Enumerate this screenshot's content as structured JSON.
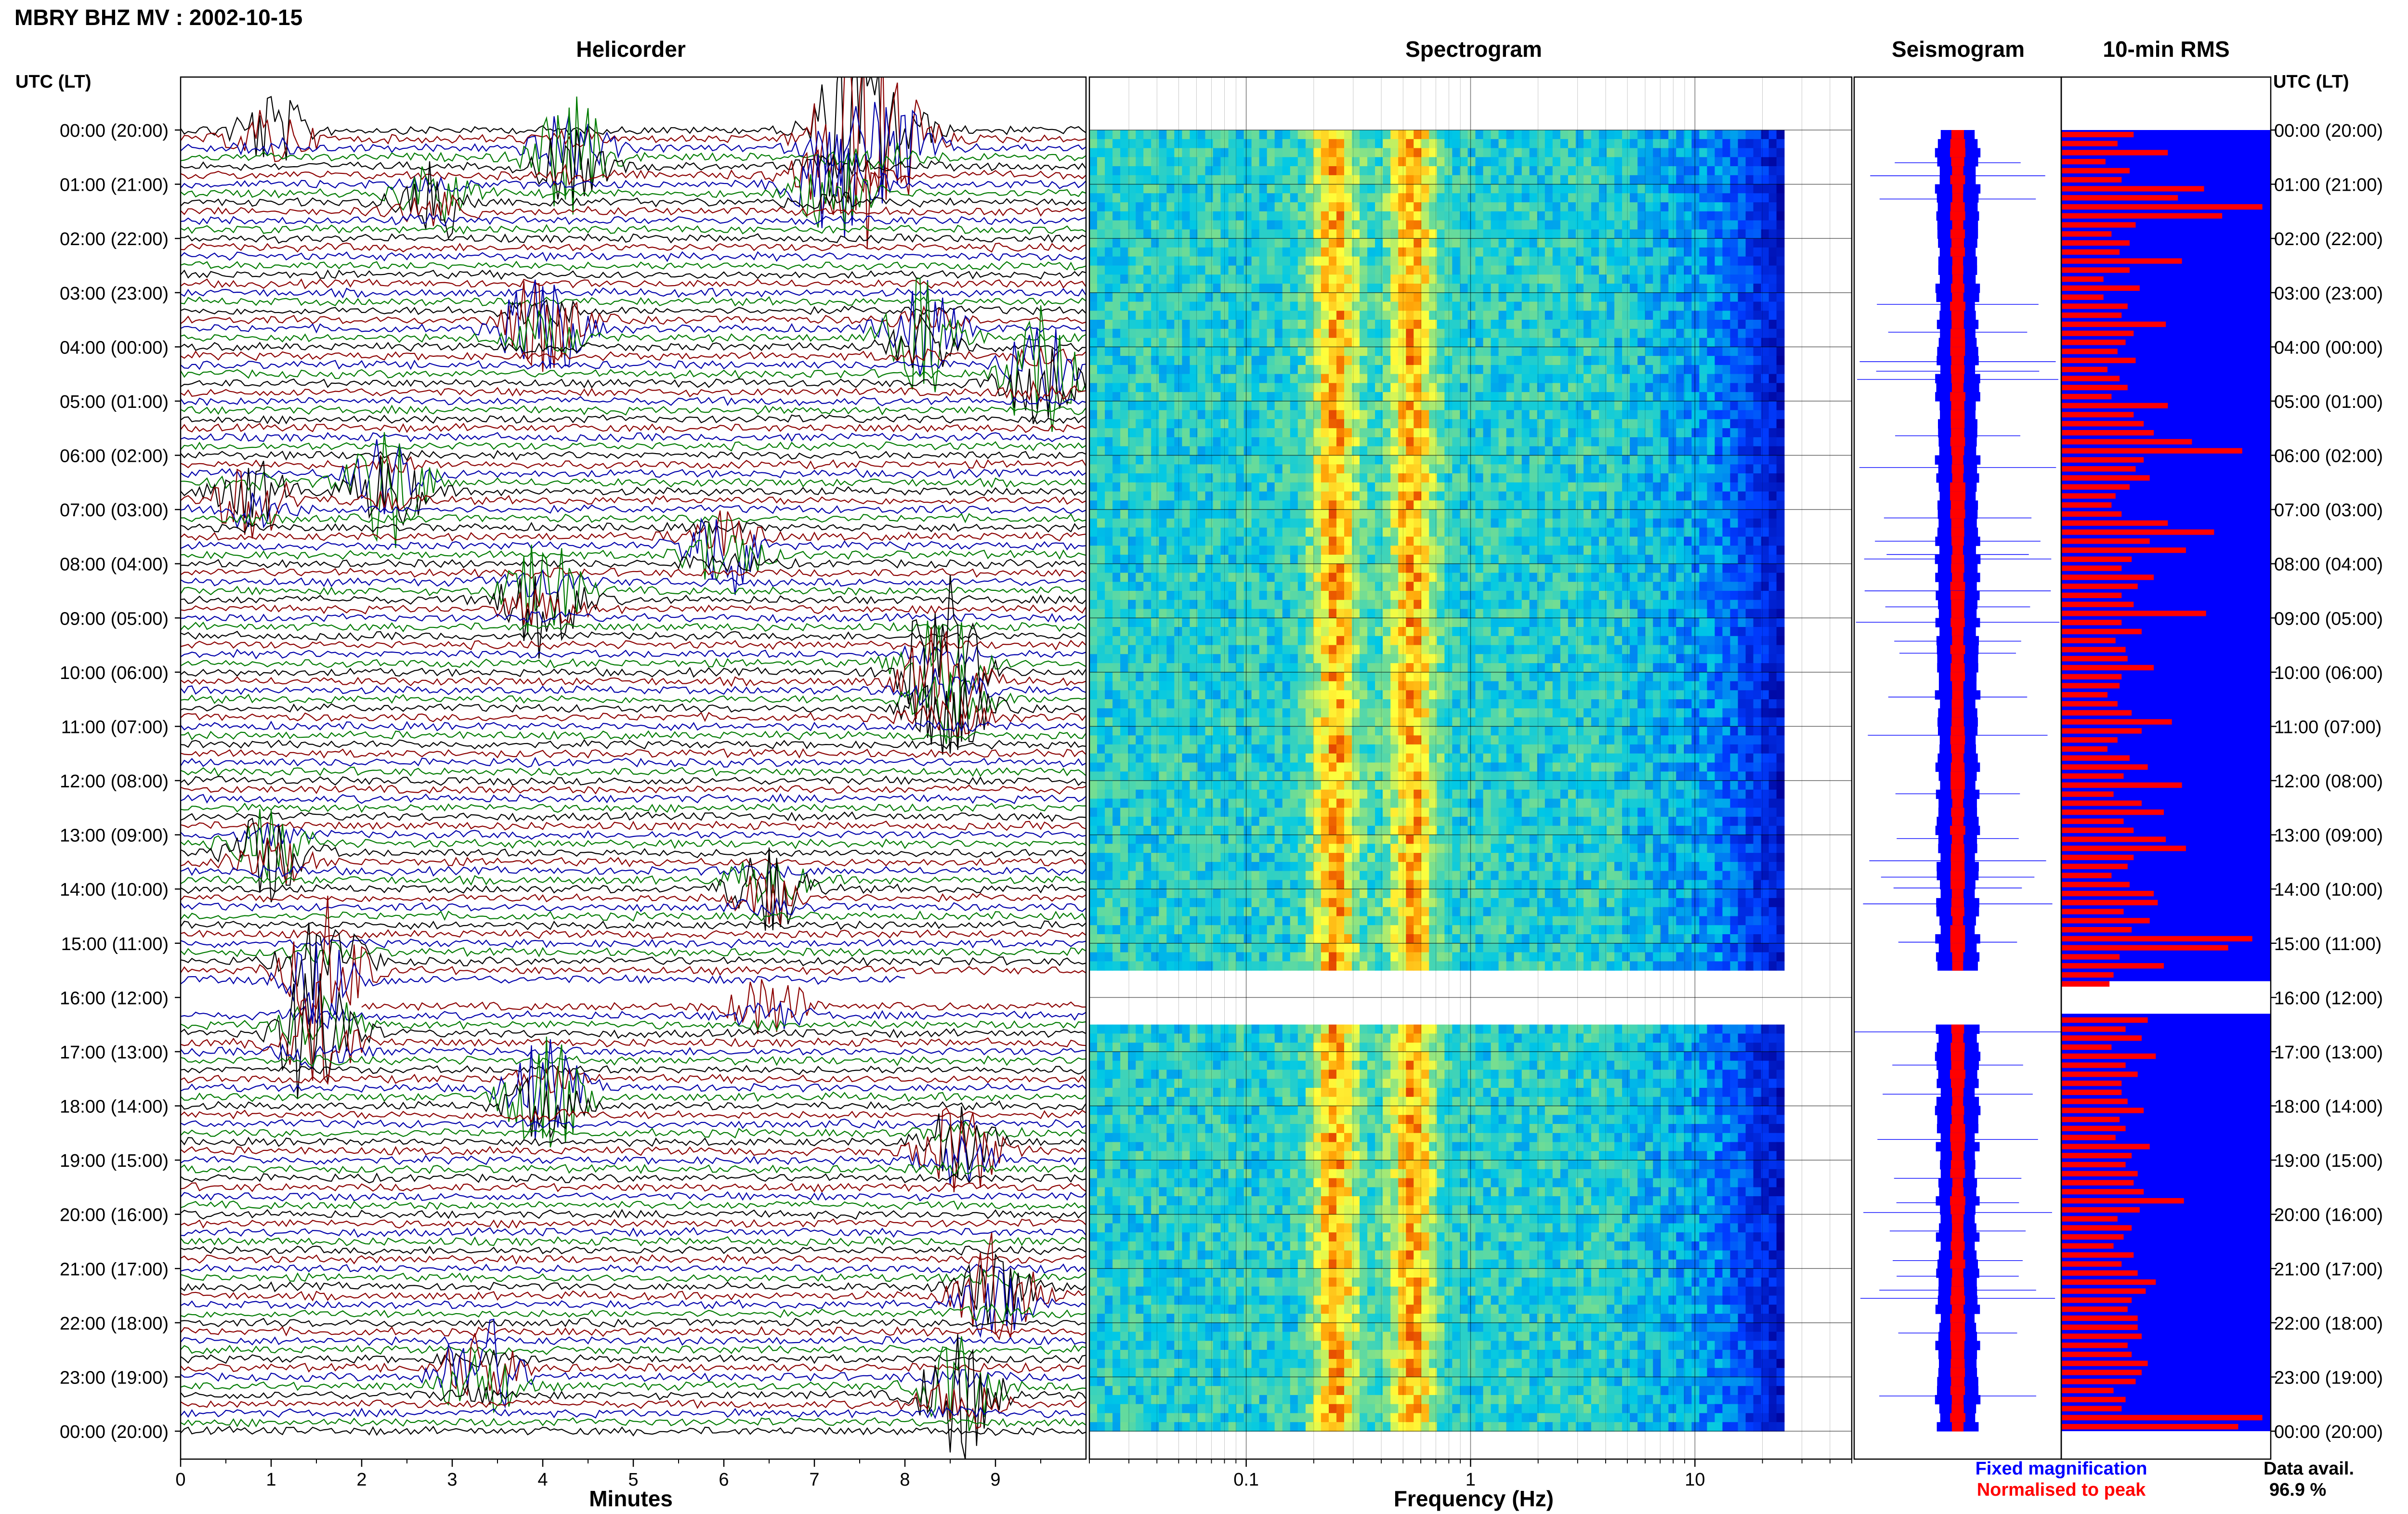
{
  "header": {
    "title": "MBRY BHZ MV : 2002-10-15",
    "left_axis_title": "UTC (LT)",
    "right_axis_title": "UTC (LT)"
  },
  "panels": {
    "helicorder": "Helicorder",
    "spectrogram": "Spectrogram",
    "seismogram": "Seismogram",
    "rms": "10-min RMS"
  },
  "legend": {
    "fixed": "Fixed magnification",
    "normalised": "Normalised to peak",
    "data_avail_label": "Data avail.",
    "data_avail_value": "96.9 %"
  },
  "colors": {
    "trace_cycle": [
      "#000000",
      "#8b0000",
      "#0000aa",
      "#007a00"
    ],
    "rms_background": "#0000ff",
    "rms_bar": "#ff0000",
    "seis_fixed": "#0000ff",
    "seis_normalised": "#ff0000",
    "legend_fixed": "#0000ff",
    "legend_normalised": "#ff0000"
  },
  "chart_data": [
    {
      "type": "line",
      "panel": "Helicorder",
      "xlabel": "Minutes",
      "x_ticks": [
        "0",
        "1",
        "2",
        "3",
        "4",
        "5",
        "6",
        "7",
        "8",
        "9"
      ],
      "xlim": [
        0,
        10
      ],
      "y_tick_labels": [
        "00:00 (20:00)",
        "01:00 (21:00)",
        "02:00 (22:00)",
        "03:00 (23:00)",
        "04:00 (00:00)",
        "05:00 (01:00)",
        "06:00 (02:00)",
        "07:00 (03:00)",
        "08:00 (04:00)",
        "09:00 (05:00)",
        "10:00 (06:00)",
        "11:00 (07:00)",
        "12:00 (08:00)",
        "13:00 (09:00)",
        "14:00 (10:00)",
        "15:00 (11:00)",
        "16:00 (12:00)",
        "17:00 (13:00)",
        "18:00 (14:00)",
        "19:00 (15:00)",
        "20:00 (16:00)",
        "21:00 (17:00)",
        "22:00 (18:00)",
        "23:00 (19:00)",
        "00:00 (20:00)"
      ],
      "lines_per_hour": 6,
      "gap": {
        "start_hour": 15.5,
        "end_hour": 16.2
      },
      "events": [
        {
          "hour": 0.05,
          "minute": 1.0,
          "amplitude": 0.9
        },
        {
          "hour": 0.1,
          "minute": 7.4,
          "amplitude": 2.6
        },
        {
          "hour": 0.2,
          "minute": 7.9,
          "amplitude": 1.5
        },
        {
          "hour": 0.5,
          "minute": 4.3,
          "amplitude": 1.4
        },
        {
          "hour": 1.0,
          "minute": 7.2,
          "amplitude": 1.6
        },
        {
          "hour": 1.3,
          "minute": 2.8,
          "amplitude": 1.0
        },
        {
          "hour": 3.6,
          "minute": 4.0,
          "amplitude": 1.6
        },
        {
          "hour": 3.8,
          "minute": 8.2,
          "amplitude": 1.5
        },
        {
          "hour": 4.5,
          "minute": 9.5,
          "amplitude": 1.6
        },
        {
          "hour": 6.5,
          "minute": 2.3,
          "amplitude": 1.6
        },
        {
          "hour": 6.8,
          "minute": 0.8,
          "amplitude": 1.0
        },
        {
          "hour": 7.7,
          "minute": 6.0,
          "amplitude": 1.3
        },
        {
          "hour": 8.6,
          "minute": 4.0,
          "amplitude": 1.5
        },
        {
          "hour": 10.0,
          "minute": 8.4,
          "amplitude": 2.4
        },
        {
          "hour": 10.6,
          "minute": 8.5,
          "amplitude": 1.3
        },
        {
          "hour": 13.3,
          "minute": 1.0,
          "amplitude": 1.2
        },
        {
          "hour": 14.0,
          "minute": 6.5,
          "amplitude": 1.1
        },
        {
          "hour": 15.5,
          "minute": 1.6,
          "amplitude": 1.9
        },
        {
          "hour": 16.1,
          "minute": 6.5,
          "amplitude": 0.9
        },
        {
          "hour": 16.7,
          "minute": 1.5,
          "amplitude": 2.0
        },
        {
          "hour": 17.8,
          "minute": 4.0,
          "amplitude": 1.6
        },
        {
          "hour": 18.8,
          "minute": 8.6,
          "amplitude": 1.2
        },
        {
          "hour": 21.5,
          "minute": 9.0,
          "amplitude": 1.5
        },
        {
          "hour": 23.0,
          "minute": 3.3,
          "amplitude": 1.5
        },
        {
          "hour": 23.3,
          "minute": 8.6,
          "amplitude": 1.6
        }
      ]
    },
    {
      "type": "heatmap",
      "panel": "Spectrogram",
      "xlabel": "Frequency (Hz)",
      "x_scale": "log",
      "xlim": [
        0.02,
        50
      ],
      "x_tick_labels": [
        "0.1",
        "1",
        "10"
      ],
      "x_tick_values": [
        0.1,
        1,
        10
      ],
      "data_xlim": [
        0.02,
        25
      ],
      "peak_frequencies_hz": [
        0.25,
        0.55
      ],
      "gap": {
        "start_hour": 15.6,
        "end_hour": 16.5
      }
    },
    {
      "type": "line",
      "panel": "Seismogram",
      "series": [
        {
          "name": "Fixed magnification",
          "color": "#0000ff"
        },
        {
          "name": "Normalised to peak",
          "color": "#ff0000"
        }
      ],
      "gap": {
        "start_hour": 15.6,
        "end_hour": 16.5
      }
    },
    {
      "type": "bar",
      "panel": "10-min RMS",
      "bars_per_hour": 6,
      "gap": {
        "start_hour": 15.7,
        "end_hour": 16.3
      },
      "values": [
        0.36,
        0.28,
        0.53,
        0.22,
        0.34,
        0.3,
        0.71,
        0.58,
        1.0,
        0.8,
        0.37,
        0.25,
        0.34,
        0.29,
        0.6,
        0.34,
        0.21,
        0.39,
        0.21,
        0.33,
        0.3,
        0.52,
        0.36,
        0.32,
        0.28,
        0.37,
        0.23,
        0.29,
        0.33,
        0.25,
        0.53,
        0.36,
        0.41,
        0.46,
        0.65,
        0.9,
        0.41,
        0.37,
        0.44,
        0.34,
        0.27,
        0.25,
        0.3,
        0.53,
        0.76,
        0.44,
        0.62,
        0.35,
        0.3,
        0.46,
        0.38,
        0.3,
        0.36,
        0.72,
        0.3,
        0.4,
        0.27,
        0.32,
        0.33,
        0.46,
        0.3,
        0.29,
        0.23,
        0.28,
        0.35,
        0.55,
        0.4,
        0.28,
        0.23,
        0.34,
        0.43,
        0.31,
        0.6,
        0.26,
        0.4,
        0.51,
        0.31,
        0.36,
        0.52,
        0.62,
        0.36,
        0.33,
        0.25,
        0.34,
        0.46,
        0.48,
        0.31,
        0.44,
        0.35,
        0.95,
        0.83,
        0.29,
        0.51,
        0.26,
        0.24,
        0.28,
        0.37,
        0.27,
        0.43,
        0.32,
        0.4,
        0.25,
        0.47,
        0.32,
        0.38,
        0.3,
        0.3,
        0.33,
        0.41,
        0.29,
        0.32,
        0.27,
        0.44,
        0.35,
        0.32,
        0.38,
        0.36,
        0.41,
        0.61,
        0.39,
        0.28,
        0.35,
        0.31,
        0.26,
        0.36,
        0.3,
        0.38,
        0.47,
        0.42,
        0.35,
        0.33,
        0.38,
        0.38,
        0.4,
        0.33,
        0.35,
        0.43,
        0.4,
        0.37,
        0.26,
        0.32,
        0.3,
        1.0,
        0.88,
        0.33,
        0.25,
        0.4,
        0.42,
        0.28,
        0.59,
        0.46,
        0.41,
        0.39,
        0.31,
        0.31,
        0.3,
        1.0,
        0.6,
        0.37,
        0.44,
        0.32,
        0.26,
        0.31,
        0.39,
        0.28,
        0.39,
        0.39,
        0.34,
        0.31,
        0.37,
        0.32,
        0.49,
        0.34,
        0.29,
        0.33,
        0.4,
        0.35,
        0.4,
        0.35,
        0.49,
        0.27,
        0.36,
        0.26,
        0.34,
        0.31,
        0.33,
        0.41,
        0.36,
        0.3,
        0.27,
        0.27,
        0.29,
        0.6,
        0.39,
        0.36,
        0.27,
        0.4,
        0.37,
        0.26,
        0.45,
        0.3,
        0.37,
        0.3,
        0.34,
        0.38,
        0.26,
        0.31,
        0.32,
        0.31,
        0.41,
        0.33,
        0.31,
        0.42,
        0.64,
        0.44,
        0.35,
        0.29,
        0.32,
        0.29,
        0.39,
        0.37,
        0.56,
        0.4,
        0.32,
        0.28,
        0.37,
        0.3,
        0.25,
        0.31,
        0.62,
        0.34,
        0.43,
        0.32,
        0.33,
        0.26,
        0.27,
        0.31,
        0.4,
        0.38,
        0.29,
        0.34,
        0.44,
        0.51,
        0.32,
        0.38,
        0.33,
        0.33,
        0.44,
        0.31,
        0.38,
        0.4,
        0.31,
        0.42,
        0.3,
        0.38,
        0.31,
        0.34,
        0.32,
        0.56,
        0.33,
        0.26,
        0.32,
        0.36,
        0.44,
        0.61,
        0.4,
        0.32,
        0.35,
        0.3,
        0.44,
        0.32,
        0.37,
        0.61,
        0.29,
        0.34,
        0.36,
        0.35,
        0.37,
        0.37,
        0.42,
        0.63,
        0.44,
        0.42,
        0.3,
        0.34,
        0.28,
        0.4,
        0.36,
        0.31,
        0.3,
        0.43,
        0.33,
        0.33,
        0.32,
        0.32,
        0.26,
        0.32,
        0.35,
        0.28,
        0.33,
        0.48,
        0.3,
        0.27,
        0.45,
        0.37,
        0.28,
        0.3,
        0.36,
        0.45,
        0.32,
        0.37,
        0.41,
        0.6,
        0.32,
        0.34,
        0.41,
        0.44,
        0.34,
        0.29,
        0.26,
        0.45,
        0.36,
        0.36,
        0.37,
        0.32,
        0.33,
        0.3,
        0.39,
        0.33,
        0.39,
        0.36,
        0.29,
        0.33,
        0.24,
        0.4,
        0.32,
        0.27,
        0.3,
        0.34
      ]
    }
  ]
}
